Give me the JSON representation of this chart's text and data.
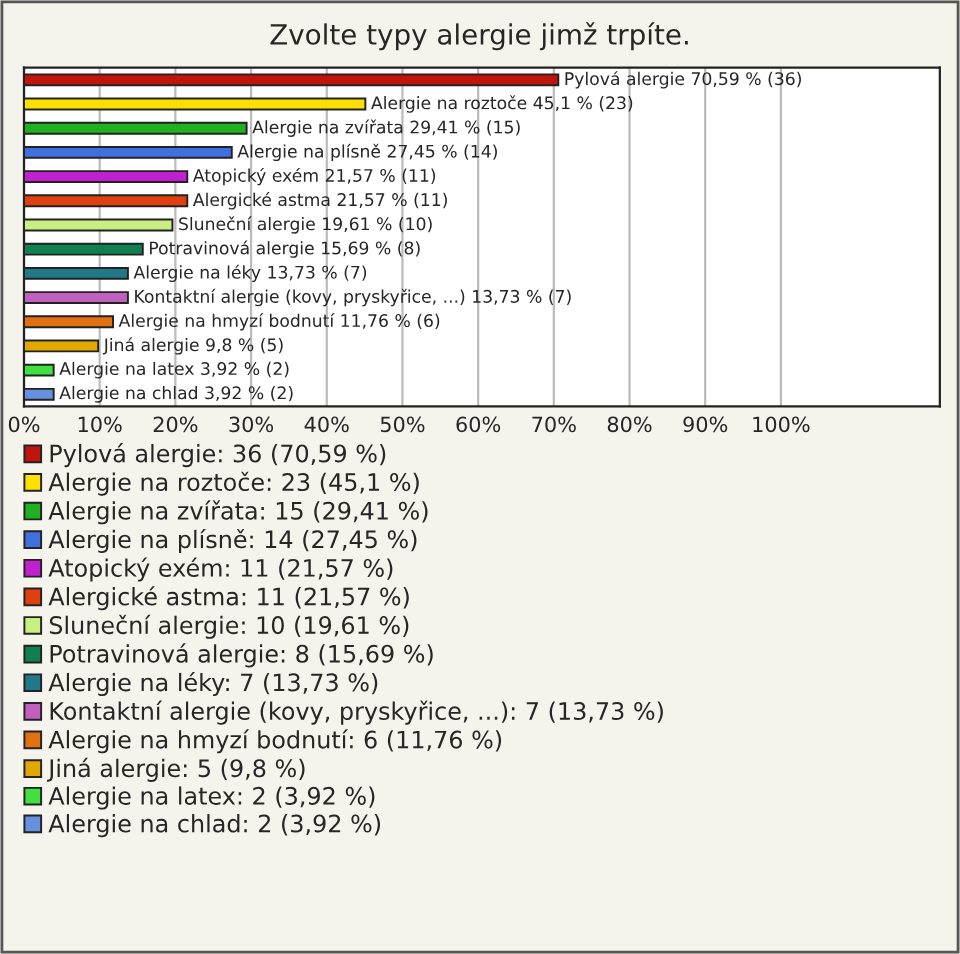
{
  "chart_data": {
    "type": "bar",
    "orientation": "horizontal",
    "title": "Zvolte typy alergie jimž trpíte.",
    "categories": [
      null,
      null,
      null,
      null,
      null,
      null,
      null,
      null,
      null,
      null,
      null,
      null,
      null,
      null
    ],
    "series": [
      {
        "name": "Pylová alergie: 36 (70,59 %)",
        "color": "#c0140c",
        "values": [
          70.59,
          null,
          null,
          null,
          null,
          null,
          null,
          null,
          null,
          null,
          null,
          null,
          null,
          null
        ],
        "value_labels": [
          "Pylová alergie 70,59 % (36)",
          null,
          null,
          null,
          null,
          null,
          null,
          null,
          null,
          null,
          null,
          null,
          null,
          null
        ]
      },
      {
        "name": "Alergie na roztoče: 23 (45,1 %)",
        "color": "#ffe000",
        "values": [
          null,
          45.1,
          null,
          null,
          null,
          null,
          null,
          null,
          null,
          null,
          null,
          null,
          null,
          null
        ],
        "value_labels": [
          null,
          "Alergie na roztoče 45,1 % (23)",
          null,
          null,
          null,
          null,
          null,
          null,
          null,
          null,
          null,
          null,
          null,
          null
        ]
      },
      {
        "name": "Alergie na zvířata: 15 (29,41 %)",
        "color": "#20b020",
        "values": [
          null,
          null,
          29.41,
          null,
          null,
          null,
          null,
          null,
          null,
          null,
          null,
          null,
          null,
          null
        ],
        "value_labels": [
          null,
          null,
          "Alergie na zvířata 29,41 % (15)",
          null,
          null,
          null,
          null,
          null,
          null,
          null,
          null,
          null,
          null,
          null
        ]
      },
      {
        "name": "Alergie na plísně: 14 (27,45 %)",
        "color": "#4070e0",
        "values": [
          null,
          null,
          null,
          27.45,
          null,
          null,
          null,
          null,
          null,
          null,
          null,
          null,
          null,
          null
        ],
        "value_labels": [
          null,
          null,
          null,
          "Alergie na plísně 27,45 % (14)",
          null,
          null,
          null,
          null,
          null,
          null,
          null,
          null,
          null,
          null
        ]
      },
      {
        "name": "Atopický exém: 11 (21,57 %)",
        "color": "#c020d0",
        "values": [
          null,
          null,
          null,
          null,
          21.57,
          null,
          null,
          null,
          null,
          null,
          null,
          null,
          null,
          null
        ],
        "value_labels": [
          null,
          null,
          null,
          null,
          "Atopický exém 21,57 % (11)",
          null,
          null,
          null,
          null,
          null,
          null,
          null,
          null,
          null
        ]
      },
      {
        "name": "Alergické astma: 11 (21,57 %)",
        "color": "#e04010",
        "values": [
          null,
          null,
          null,
          null,
          null,
          21.57,
          null,
          null,
          null,
          null,
          null,
          null,
          null,
          null
        ],
        "value_labels": [
          null,
          null,
          null,
          null,
          null,
          "Alergické astma 21,57 % (11)",
          null,
          null,
          null,
          null,
          null,
          null,
          null,
          null
        ]
      },
      {
        "name": "Sluneční alergie: 10 (19,61 %)",
        "color": "#c8f080",
        "values": [
          null,
          null,
          null,
          null,
          null,
          null,
          19.61,
          null,
          null,
          null,
          null,
          null,
          null,
          null
        ],
        "value_labels": [
          null,
          null,
          null,
          null,
          null,
          null,
          "Sluneční alergie 19,61 % (10)",
          null,
          null,
          null,
          null,
          null,
          null,
          null
        ]
      },
      {
        "name": "Potravinová alergie: 8 (15,69 %)",
        "color": "#108050",
        "values": [
          null,
          null,
          null,
          null,
          null,
          null,
          null,
          15.69,
          null,
          null,
          null,
          null,
          null,
          null
        ],
        "value_labels": [
          null,
          null,
          null,
          null,
          null,
          null,
          null,
          "Potravinová alergie 15,69 % (8)",
          null,
          null,
          null,
          null,
          null,
          null
        ]
      },
      {
        "name": "Alergie na léky: 7 (13,73 %)",
        "color": "#207888",
        "values": [
          null,
          null,
          null,
          null,
          null,
          null,
          null,
          null,
          13.73,
          null,
          null,
          null,
          null,
          null
        ],
        "value_labels": [
          null,
          null,
          null,
          null,
          null,
          null,
          null,
          null,
          "Alergie na léky 13,73 % (7)",
          null,
          null,
          null,
          null,
          null
        ]
      },
      {
        "name": "Kontaktní alergie (kovy, pryskyřice, ...): 7 (13,73 %)",
        "color": "#c060c0",
        "values": [
          null,
          null,
          null,
          null,
          null,
          null,
          null,
          null,
          null,
          13.73,
          null,
          null,
          null,
          null
        ],
        "value_labels": [
          null,
          null,
          null,
          null,
          null,
          null,
          null,
          null,
          null,
          "Kontaktní alergie (kovy, pryskyřice, ...) 13,73 % (7)",
          null,
          null,
          null,
          null
        ]
      },
      {
        "name": "Alergie na hmyzí bodnutí: 6 (11,76 %)",
        "color": "#e07010",
        "values": [
          null,
          null,
          null,
          null,
          null,
          null,
          null,
          null,
          null,
          null,
          11.76,
          null,
          null,
          null
        ],
        "value_labels": [
          null,
          null,
          null,
          null,
          null,
          null,
          null,
          null,
          null,
          null,
          "Alergie na hmyzí bodnutí 11,76 % (6)",
          null,
          null,
          null
        ]
      },
      {
        "name": "Jiná alergie: 5 (9,8 %)",
        "color": "#e0a800",
        "values": [
          null,
          null,
          null,
          null,
          null,
          null,
          null,
          null,
          null,
          null,
          null,
          9.8,
          null,
          null
        ],
        "value_labels": [
          null,
          null,
          null,
          null,
          null,
          null,
          null,
          null,
          null,
          null,
          null,
          "Jiná alergie 9,8 % (5)",
          null,
          null
        ]
      },
      {
        "name": "Alergie na latex: 2 (3,92 %)",
        "color": "#40e040",
        "values": [
          null,
          null,
          null,
          null,
          null,
          null,
          null,
          null,
          null,
          null,
          null,
          null,
          3.92,
          null
        ],
        "value_labels": [
          null,
          null,
          null,
          null,
          null,
          null,
          null,
          null,
          null,
          null,
          null,
          null,
          "Alergie na latex 3,92 % (2)",
          null
        ]
      },
      {
        "name": "Alergie na chlad: 2 (3,92 %)",
        "color": "#6890e0",
        "values": [
          null,
          null,
          null,
          null,
          null,
          null,
          null,
          null,
          null,
          null,
          null,
          null,
          null,
          3.92
        ],
        "value_labels": [
          null,
          null,
          null,
          null,
          null,
          null,
          null,
          null,
          null,
          null,
          null,
          null,
          null,
          "Alergie na chlad 3,92 % (2)"
        ]
      }
    ],
    "xlim": [
      0,
      121
    ],
    "xticks": [
      {
        "value": 0,
        "label": "0%"
      },
      {
        "value": 10,
        "label": "10%"
      },
      {
        "value": 20,
        "label": "20%"
      },
      {
        "value": 30,
        "label": "30%"
      },
      {
        "value": 40,
        "label": "40%"
      },
      {
        "value": 50,
        "label": "50%"
      },
      {
        "value": 60,
        "label": "60%"
      },
      {
        "value": 70,
        "label": "70%"
      },
      {
        "value": 80,
        "label": "80%"
      },
      {
        "value": 90,
        "label": "90%"
      },
      {
        "value": 100,
        "label": "100%"
      }
    ],
    "grid": "x",
    "legend": "bottom",
    "tick_labels": "x"
  }
}
